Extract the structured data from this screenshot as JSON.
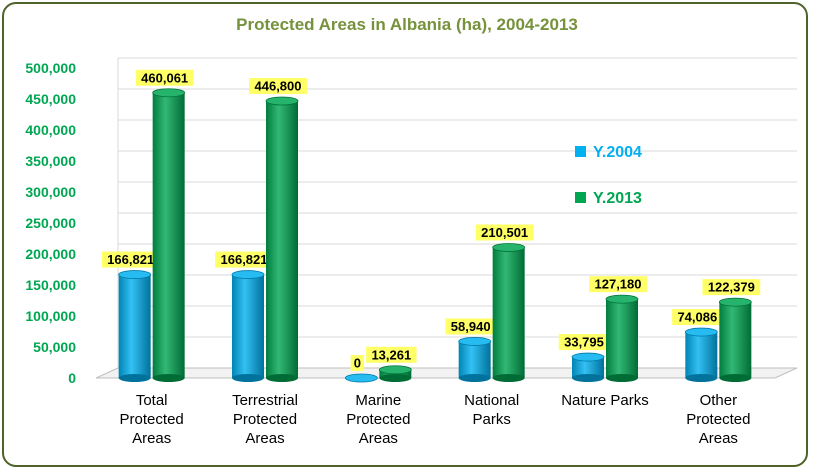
{
  "chart_data": {
    "type": "bar",
    "title": "Protected Areas in Albania (ha), 2004-2013",
    "categories": [
      [
        "Total",
        "Protected",
        "Areas"
      ],
      [
        "Terrestrial",
        "Protected",
        "Areas"
      ],
      [
        "Marine",
        "Protected",
        "Areas"
      ],
      [
        "National",
        "Parks"
      ],
      [
        "Nature Parks"
      ],
      [
        "Other",
        "Protected",
        "Areas"
      ]
    ],
    "series": [
      {
        "name": "Y.2004",
        "color": "#00b0f0",
        "values": [
          166821,
          166821,
          0,
          58940,
          33795,
          74086
        ],
        "labels": [
          "166,821",
          "166,821",
          "0",
          "58,940",
          "33,795",
          "74,086"
        ]
      },
      {
        "name": "Y.2013",
        "color": "#00a651",
        "values": [
          460061,
          446800,
          13261,
          210501,
          127180,
          122379
        ],
        "labels": [
          "460,061",
          "446,800",
          "13,261",
          "210,501",
          "127,180",
          "122,379"
        ]
      }
    ],
    "yticks": [
      "0",
      "50,000",
      "100,000",
      "150,000",
      "200,000",
      "250,000",
      "300,000",
      "350,000",
      "400,000",
      "450,000",
      "500,000"
    ],
    "ylim": [
      0,
      500000
    ],
    "grid": true,
    "legend_position": "right",
    "data_label_background": "#ffff66"
  }
}
